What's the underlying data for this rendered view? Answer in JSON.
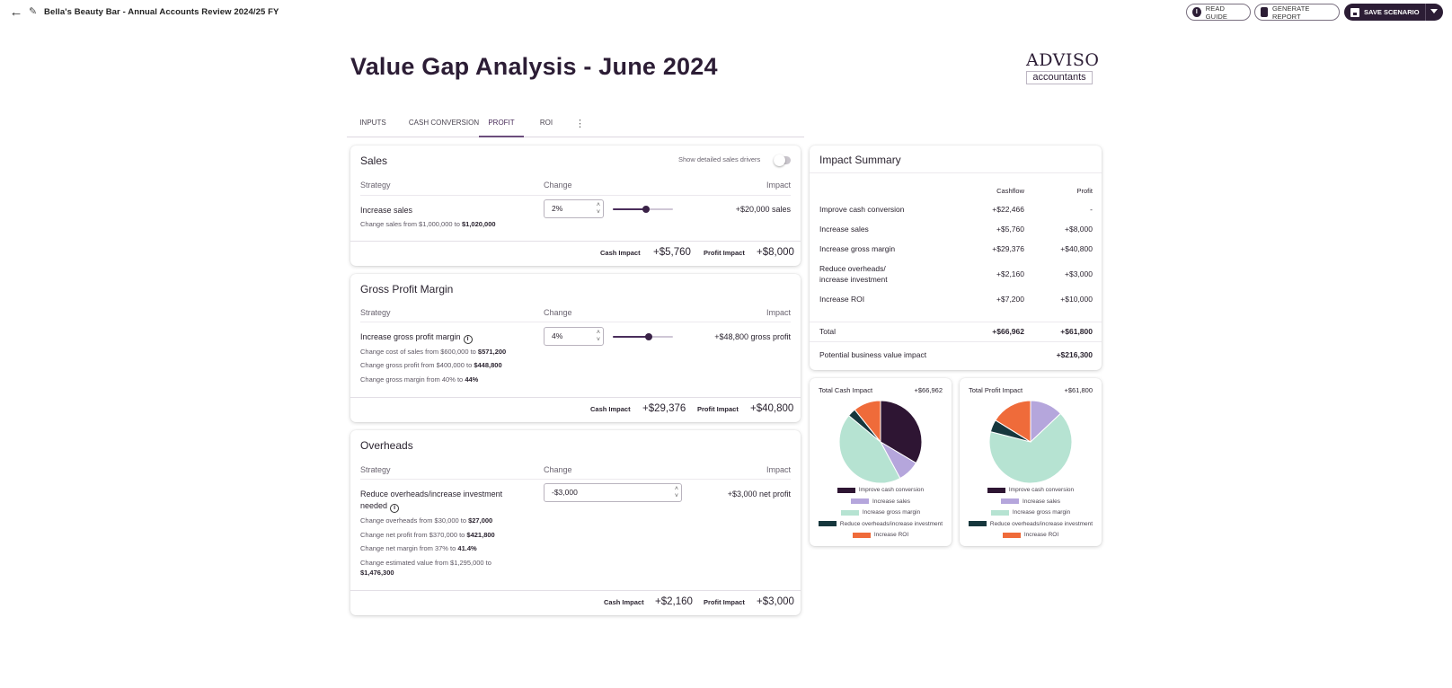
{
  "topbar": {
    "title": "Bella's Beauty Bar - Annual Accounts Review 2024/25 FY",
    "read_guide": "READ GUIDE",
    "generate_report": "GENERATE REPORT",
    "save_scenario": "SAVE SCENARIO"
  },
  "header": {
    "title": "Value Gap Analysis - June 2024",
    "logo_brand": "ADVISO",
    "logo_sub": "accountants"
  },
  "tabs": [
    "INPUTS",
    "CASH CONVERSION",
    "PROFIT",
    "ROI"
  ],
  "active_tab": "PROFIT",
  "colors": {
    "brand": "#2c1d35",
    "accent": "#6b4d7c",
    "cash_conversion": "#2e1533",
    "sales": "#b5a6dc",
    "gross_margin": "#b6e3d2",
    "overheads": "#16373d",
    "roi": "#ef6b3a"
  },
  "sales": {
    "title": "Sales",
    "toggle_label": "Show detailed sales drivers",
    "col_strategy": "Strategy",
    "col_change": "Change",
    "col_impact": "Impact",
    "strategy": "Increase sales",
    "note": "Change sales from $1,000,000 to ",
    "note_bold": "$1,020,000",
    "change": "2%",
    "slider_fraction": 0.55,
    "impact": "+$20,000 sales",
    "cash_label": "Cash Impact",
    "cash_value": "+$5,760",
    "profit_label": "Profit Impact",
    "profit_value": "+$8,000"
  },
  "gpm": {
    "title": "Gross Profit Margin",
    "col_strategy": "Strategy",
    "col_change": "Change",
    "col_impact": "Impact",
    "strategy": "Increase gross profit margin",
    "note1": "Change cost of sales from $600,000 to ",
    "note1_bold": "$571,200",
    "note2": "Change gross profit from $400,000 to ",
    "note2_bold": "$448,800",
    "note3": "Change gross margin from 40% to ",
    "note3_bold": "44%",
    "change": "4%",
    "slider_fraction": 0.6,
    "impact": "+$48,800 gross profit",
    "cash_label": "Cash Impact",
    "cash_value": "+$29,376",
    "profit_label": "Profit Impact",
    "profit_value": "+$40,800"
  },
  "overheads": {
    "title": "Overheads",
    "col_strategy": "Strategy",
    "col_change": "Change",
    "col_impact": "Impact",
    "strategy_line1": "Reduce overheads/increase investment",
    "strategy_line2": "needed",
    "note1": "Change overheads from $30,000 to ",
    "note1_bold": "$27,000",
    "note2": "Change net profit from $370,000 to ",
    "note2_bold": "$421,800",
    "note3": "Change net margin from 37% to ",
    "note3_bold": "41.4%",
    "note4": "Change estimated value from $1,295,000 to",
    "note4_bold": "$1,476,300",
    "change": "-$3,000",
    "impact": "+$3,000 net profit",
    "cash_label": "Cash Impact",
    "cash_value": "+$2,160",
    "profit_label": "Profit Impact",
    "profit_value": "+$3,000"
  },
  "summary": {
    "title": "Impact Summary",
    "col_cashflow": "Cashflow",
    "col_profit": "Profit",
    "rows": [
      {
        "label": "Improve cash conversion",
        "label2": "",
        "cash": "+$22,466",
        "profit": "-"
      },
      {
        "label": "Increase sales",
        "label2": "",
        "cash": "+$5,760",
        "profit": "+$8,000"
      },
      {
        "label": "Increase gross margin",
        "label2": "",
        "cash": "+$29,376",
        "profit": "+$40,800"
      },
      {
        "label": "Reduce overheads/",
        "label2": "increase investment",
        "cash": "+$2,160",
        "profit": "+$3,000"
      },
      {
        "label": "Increase ROI",
        "label2": "",
        "cash": "+$7,200",
        "profit": "+$10,000"
      }
    ],
    "total_label": "Total",
    "total_cash": "+$66,962",
    "total_profit": "+$61,800",
    "potential_label": "Potential business value impact",
    "potential_value": "+$216,300"
  },
  "chart_data": [
    {
      "type": "pie",
      "title": "Total Cash Impact",
      "total": "+$66,962",
      "categories": [
        "Improve cash conversion",
        "Increase sales",
        "Increase gross margin",
        "Reduce overheads/increase investment",
        "Increase ROI"
      ],
      "values": [
        22466,
        5760,
        29376,
        2160,
        7200
      ],
      "legend": "bottom"
    },
    {
      "type": "pie",
      "title": "Total Profit Impact",
      "total": "+$61,800",
      "categories": [
        "Improve cash conversion",
        "Increase sales",
        "Increase gross margin",
        "Reduce overheads/increase investment",
        "Increase ROI"
      ],
      "values": [
        0,
        8000,
        40800,
        3000,
        10000
      ],
      "legend": "bottom"
    }
  ]
}
